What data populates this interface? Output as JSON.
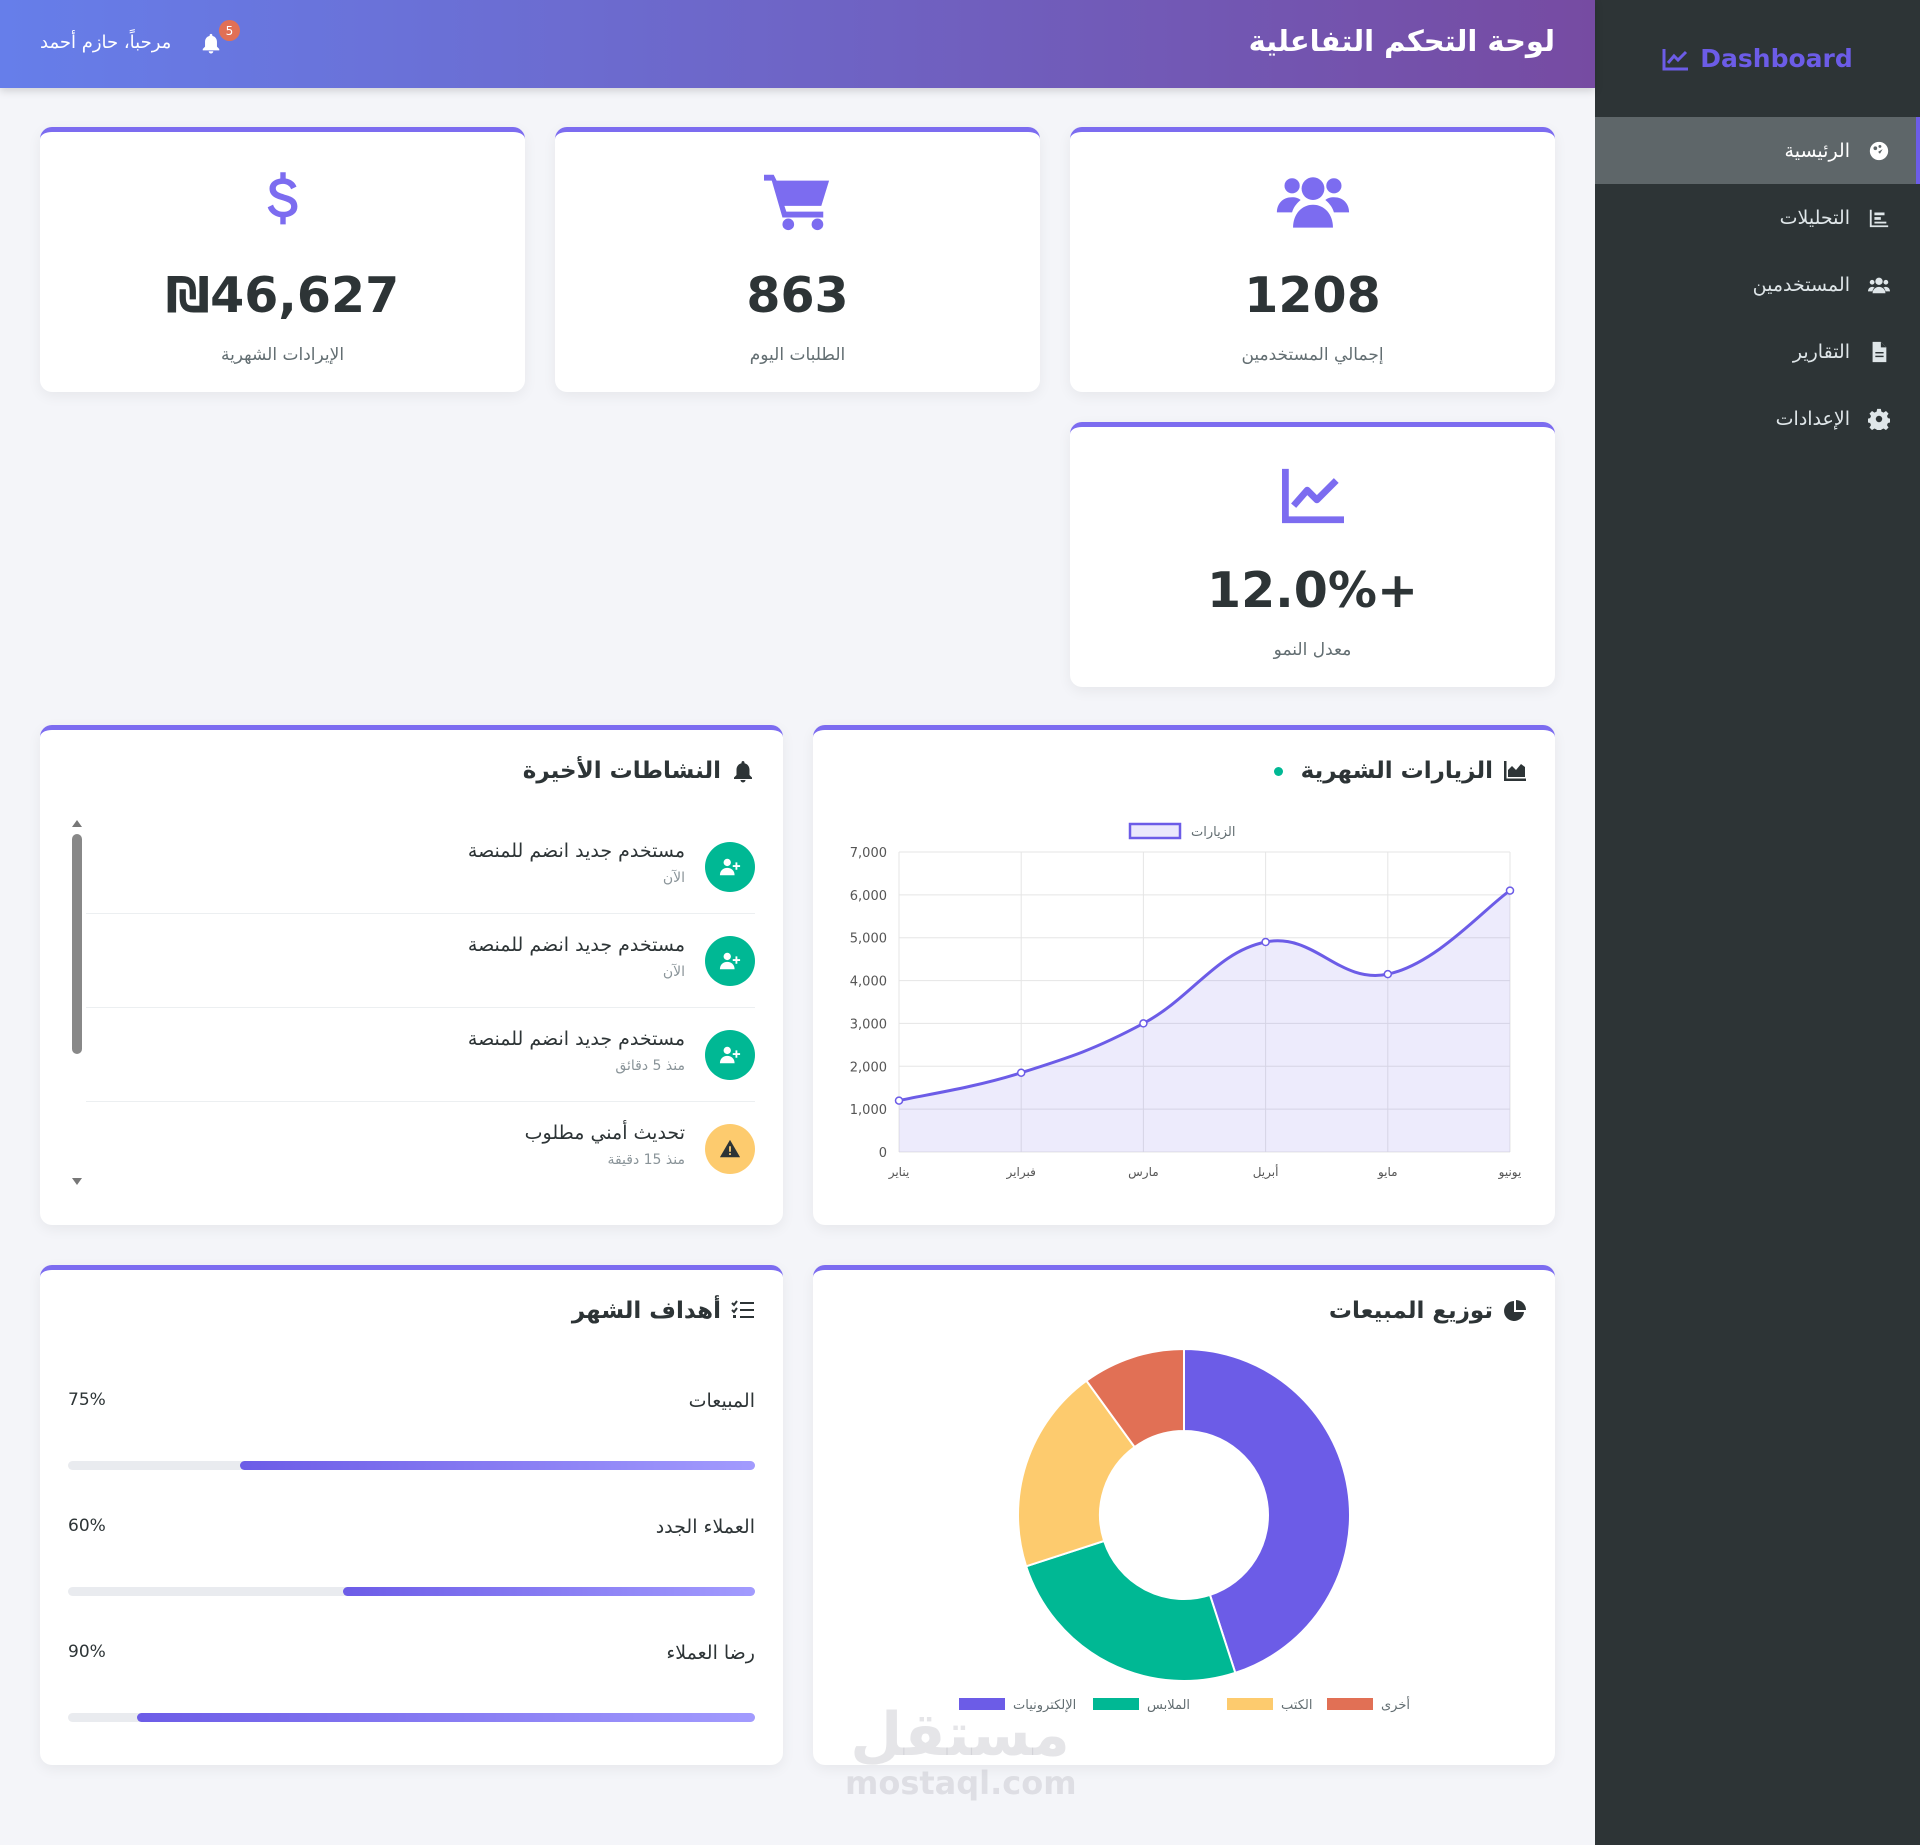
{
  "sidebar": {
    "brand": "Dashboard",
    "items": [
      {
        "label": "الرئيسية",
        "icon": "palette-icon",
        "active": true
      },
      {
        "label": "التحليلات",
        "icon": "bar-chart-icon",
        "active": false
      },
      {
        "label": "المستخدمين",
        "icon": "users-icon",
        "active": false
      },
      {
        "label": "التقارير",
        "icon": "file-icon",
        "active": false
      },
      {
        "label": "الإعدادات",
        "icon": "gear-icon",
        "active": false
      }
    ]
  },
  "header": {
    "title": "لوحة التحكم التفاعلية",
    "greeting": "مرحباً، حازم أحمد",
    "notifications": "5"
  },
  "stats": [
    {
      "value": "1208",
      "label": "إجمالي المستخدمين",
      "icon": "users-icon"
    },
    {
      "value": "863",
      "label": "الطلبات اليوم",
      "icon": "cart-icon"
    },
    {
      "value": "₪46,627",
      "label": "الإيرادات الشهرية",
      "icon": "dollar-icon"
    },
    {
      "value": "+12.0%",
      "label": "معدل النمو",
      "icon": "line-chart-icon"
    }
  ],
  "visits_panel": {
    "title": "الزيارات الشهرية"
  },
  "activities_panel": {
    "title": "النشاطات الأخيرة",
    "items": [
      {
        "title": "مستخدم جديد انضم للمنصة",
        "time": "الآن",
        "icon": "user-plus-icon",
        "color": "#00b894"
      },
      {
        "title": "مستخدم جديد انضم للمنصة",
        "time": "الآن",
        "icon": "user-plus-icon",
        "color": "#00b894"
      },
      {
        "title": "مستخدم جديد انضم للمنصة",
        "time": "منذ 5 دقائق",
        "icon": "user-plus-icon",
        "color": "#00b894"
      },
      {
        "title": "تحديث أمني مطلوب",
        "time": "منذ 15 دقيقة",
        "icon": "warning-icon",
        "color": "#fdcb6e"
      }
    ]
  },
  "sales_panel": {
    "title": "توزيع المبيعات"
  },
  "goals_panel": {
    "title": "أهداف الشهر",
    "goals": [
      {
        "name": "المبيعات",
        "pct_label": "75%",
        "value": 75
      },
      {
        "name": "العملاء الجدد",
        "pct_label": "60%",
        "value": 60
      },
      {
        "name": "رضا العملاء",
        "pct_label": "90%",
        "value": 90
      }
    ]
  },
  "chart_data": [
    {
      "type": "line",
      "title": "",
      "categories": [
        "يناير",
        "فبراير",
        "مارس",
        "أبريل",
        "مايو",
        "يونيو"
      ],
      "series": [
        {
          "name": "الزيارات",
          "values": [
            1200,
            1850,
            3000,
            4900,
            4150,
            6100
          ],
          "color": "#6c5ce7"
        }
      ],
      "ylim": [
        0,
        7000
      ],
      "yticks": [
        "0",
        "1,000",
        "2,000",
        "3,000",
        "4,000",
        "5,000",
        "6,000",
        "7,000"
      ],
      "grid": true,
      "legend": "top"
    },
    {
      "type": "pie",
      "title": "",
      "categories": [
        "الإلكترونيات",
        "الملابس",
        "الكتب",
        "أخرى"
      ],
      "values": [
        45,
        25,
        20,
        10
      ],
      "colors": [
        "#6c5ce7",
        "#00b894",
        "#fdcb6e",
        "#e17055"
      ],
      "legend": "bottom"
    }
  ],
  "watermark": {
    "ar": "مستقل",
    "en": "mostaql.com"
  }
}
